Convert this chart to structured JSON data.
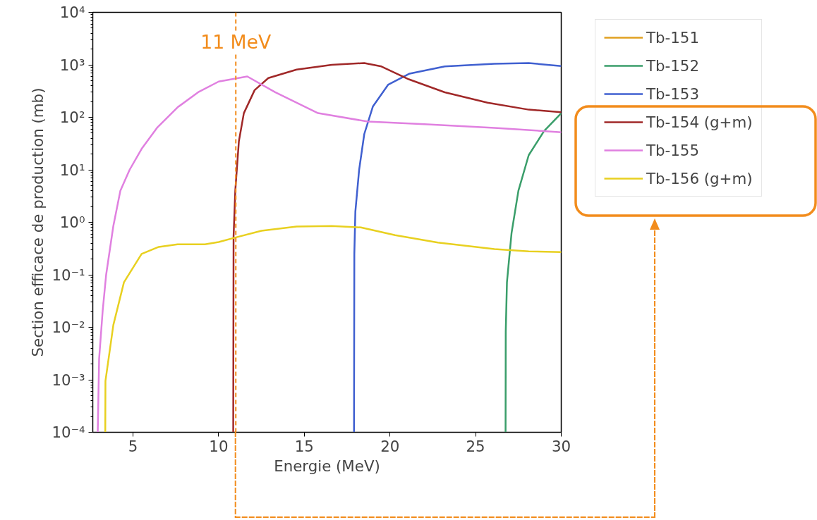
{
  "chart_data": {
    "type": "line",
    "xlabel": "Energie (MeV)",
    "ylabel": "Section efficace de production (mb)",
    "log": "y",
    "xlim": [
      2.65,
      30
    ],
    "ylim": [
      0.0001,
      10000
    ],
    "xticks": [
      5,
      10,
      15,
      20,
      25,
      30
    ],
    "yticks": [
      {
        "value": 0.0001,
        "label": "10⁻⁴"
      },
      {
        "value": 0.001,
        "label": "10⁻³"
      },
      {
        "value": 0.01,
        "label": "10⁻²"
      },
      {
        "value": 0.1,
        "label": "10⁻¹"
      },
      {
        "value": 1,
        "label": "10⁰"
      },
      {
        "value": 10,
        "label": "10¹"
      },
      {
        "value": 100,
        "label": "10²"
      },
      {
        "value": 1000,
        "label": "10³"
      },
      {
        "value": 10000,
        "label": "10⁴"
      }
    ],
    "grid": false,
    "legend": "right",
    "line_style": "solid",
    "marker": "none",
    "series": [
      {
        "name": "Tb-151",
        "color": "#e0a020"
      },
      {
        "name": "Tb-152",
        "color": "#3a9e6a",
        "x": [
          26.75,
          26.76,
          26.83,
          27.1,
          27.5,
          28.1,
          29.0,
          30
        ],
        "values": [
          0.0001,
          0.0083,
          0.072,
          0.63,
          4,
          19,
          55,
          120
        ]
      },
      {
        "name": "Tb-153",
        "color": "#4060d0",
        "x": [
          17.9,
          17.92,
          17.98,
          18.2,
          18.5,
          19.0,
          19.9,
          21.15,
          23.2,
          26.1,
          28.1,
          30
        ],
        "values": [
          0.0001,
          0.25,
          1.6,
          10,
          48,
          160,
          420,
          680,
          930,
          1050,
          1080,
          950
        ]
      },
      {
        "name": "Tb-154 (g+m)",
        "color": "#a02828",
        "x": [
          10.85,
          10.87,
          10.97,
          11.18,
          11.47,
          12.1,
          12.9,
          14.55,
          16.6,
          18.5,
          19.5,
          21.1,
          23.2,
          25.7,
          28.1,
          30
        ],
        "values": [
          0.0001,
          0.54,
          4,
          35,
          120,
          330,
          560,
          810,
          1000,
          1080,
          930,
          530,
          300,
          190,
          140,
          125
        ]
      },
      {
        "name": "Tb-155",
        "color": "#e080e0",
        "x": [
          2.94,
          3.02,
          3.23,
          3.43,
          3.85,
          4.26,
          4.8,
          5.5,
          6.4,
          7.6,
          8.8,
          10.0,
          11.67,
          13.3,
          15.8,
          18.7,
          22.0,
          26.1,
          30
        ],
        "values": [
          0.0001,
          0.0025,
          0.021,
          0.1,
          0.85,
          4,
          10,
          25,
          63,
          155,
          300,
          480,
          600,
          300,
          120,
          83,
          74,
          63,
          52
        ]
      },
      {
        "name": "Tb-156 (g+m)",
        "color": "#e8d020",
        "x": [
          3.38,
          3.39,
          3.85,
          4.47,
          5.5,
          6.5,
          7.6,
          9.2,
          10.0,
          11.05,
          12.5,
          14.55,
          16.6,
          18.3,
          20.3,
          22.8,
          26.1,
          28.1,
          30
        ],
        "values": [
          0.0001,
          0.00095,
          0.011,
          0.072,
          0.25,
          0.34,
          0.38,
          0.38,
          0.42,
          0.52,
          0.69,
          0.83,
          0.85,
          0.8,
          0.57,
          0.41,
          0.31,
          0.28,
          0.27
        ]
      }
    ],
    "ref_lines": [
      {
        "axis": "x",
        "value": 11,
        "label": "11 MeV",
        "color": "#f28c1c",
        "line_style": "dashed"
      }
    ]
  }
}
